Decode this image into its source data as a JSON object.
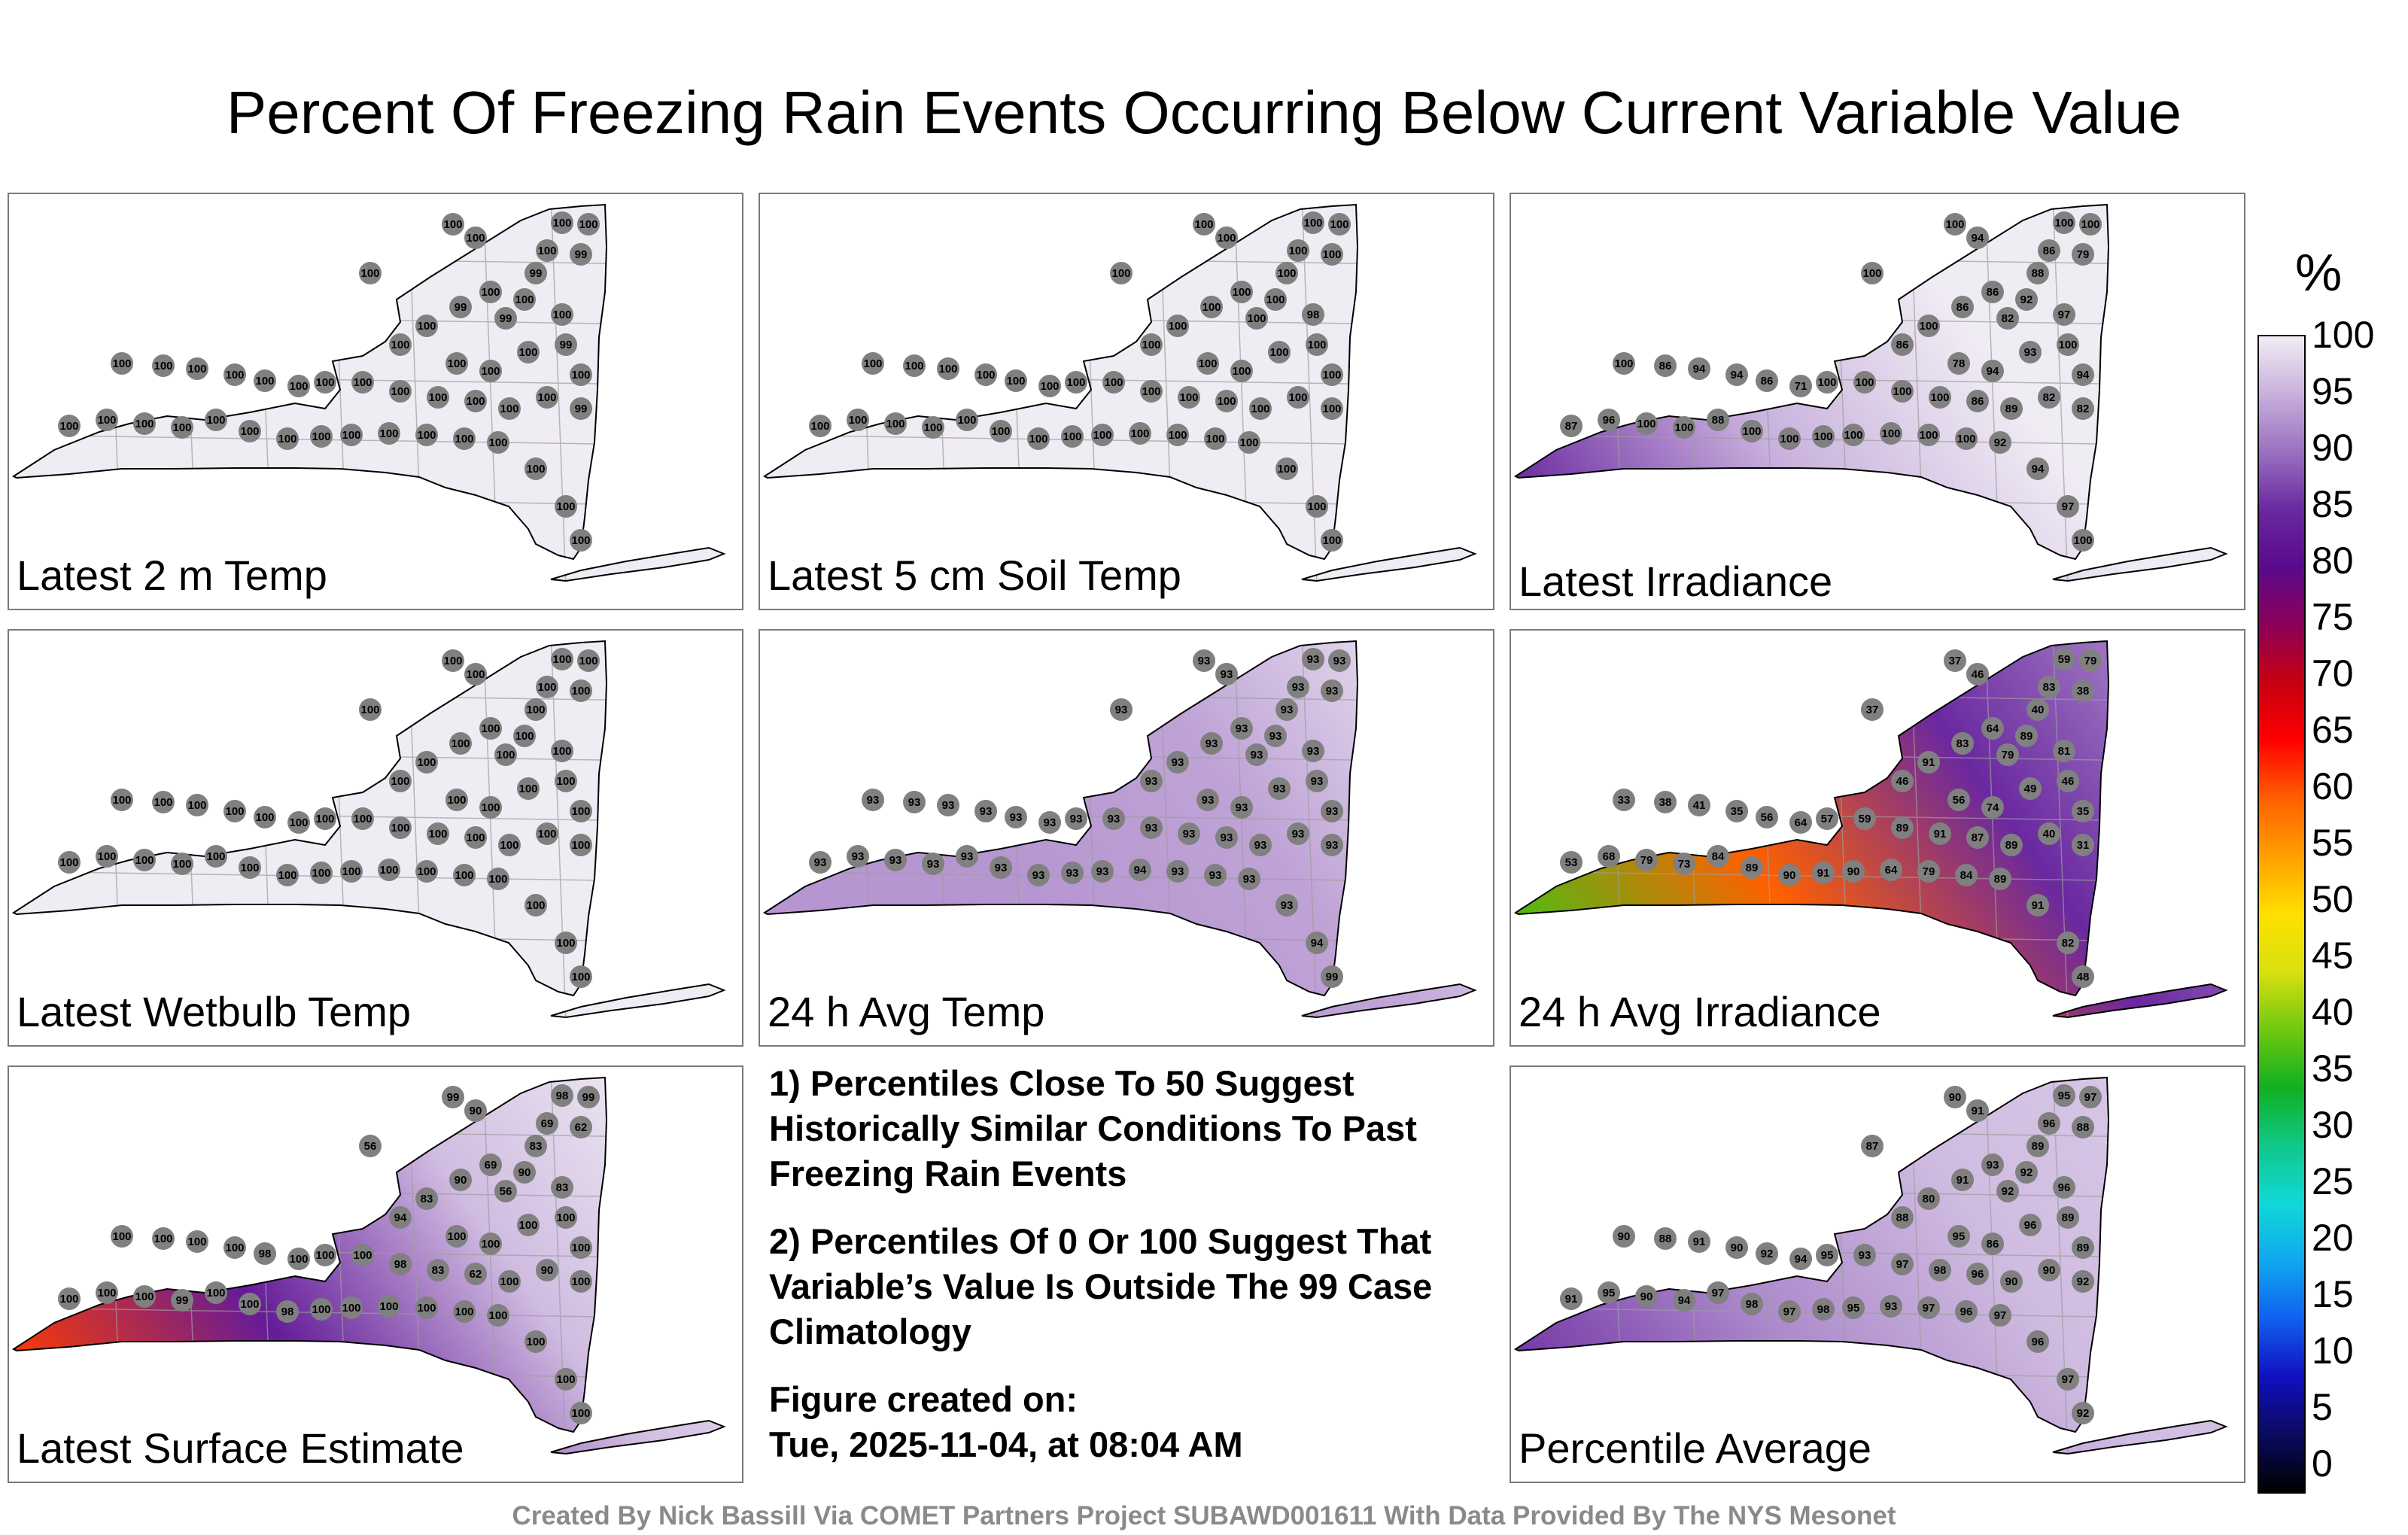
{
  "title": "Percent Of Freezing Rain Events Occurring Below Current Variable Value",
  "credit": "Created By Nick Bassill Via COMET Partners Project SUBAWD001611 With Data Provided By The NYS Mesonet",
  "notes": {
    "note1": "1) Percentiles Close To 50 Suggest Historically Similar Conditions To Past Freezing Rain Events",
    "note2": "2) Percentiles Of 0 Or 100 Suggest That Variable’s Value Is Outside The 99 Case Climatology",
    "created_label": "Figure created on:",
    "created_value": "Tue, 2025-11-04, at 08:04 AM"
  },
  "colorbar": {
    "unit": "%",
    "ticks": [
      "100",
      "95",
      "90",
      "85",
      "80",
      "75",
      "70",
      "65",
      "60",
      "55",
      "50",
      "45",
      "40",
      "35",
      "30",
      "25",
      "20",
      "15",
      "10",
      "5",
      "0"
    ],
    "stops": [
      "#000000",
      "#0a0a60",
      "#1010c0",
      "#1060f0",
      "#10a8f0",
      "#10d8d8",
      "#10c888",
      "#10b020",
      "#70c810",
      "#d8e010",
      "#ffe000",
      "#ffa000",
      "#ff6000",
      "#ff0000",
      "#c80010",
      "#8c0058",
      "#5a0a8c",
      "#6a28a0",
      "#9a70c0",
      "#c8b0dc",
      "#f0ecf4"
    ]
  },
  "colors": {
    "frame": "#7a7a7a",
    "station_dot": "#808080",
    "state_outline": "#000000",
    "county_lines": "#9c9c9c"
  },
  "chart_data": [
    {
      "type": "map",
      "title": "Latest 2 m Temp",
      "field_values": [
        100,
        100,
        100,
        100
      ],
      "station_values": [
        100,
        100,
        100,
        100,
        100,
        99,
        99,
        100,
        100,
        99,
        100,
        99,
        100,
        100,
        100,
        100,
        100,
        100,
        99,
        100,
        100,
        100,
        100,
        100,
        100,
        100,
        100,
        100,
        100,
        100,
        100,
        100,
        100,
        99,
        100,
        100,
        100,
        100,
        100,
        100,
        100,
        100,
        100,
        100,
        100,
        100,
        100,
        100,
        100,
        100
      ]
    },
    {
      "type": "map",
      "title": "Latest 5 cm Soil Temp",
      "field_values": [
        100,
        100,
        100,
        100
      ],
      "station_values": [
        100,
        100,
        100,
        100,
        100,
        100,
        100,
        100,
        100,
        100,
        98,
        100,
        100,
        100,
        100,
        100,
        100,
        100,
        100,
        100,
        100,
        100,
        100,
        100,
        100,
        100,
        100,
        100,
        100,
        100,
        100,
        100,
        100,
        100,
        100,
        100,
        100,
        100,
        100,
        100,
        100,
        100,
        100,
        100,
        100,
        100,
        100,
        100,
        100,
        100
      ]
    },
    {
      "type": "map",
      "title": "Latest Irradiance",
      "field_values": [
        85,
        95,
        100,
        100
      ],
      "station_values": [
        100,
        94,
        100,
        100,
        86,
        79,
        88,
        86,
        92,
        82,
        97,
        86,
        100,
        100,
        86,
        78,
        94,
        93,
        100,
        94,
        100,
        86,
        94,
        94,
        86,
        71,
        100,
        100,
        100,
        100,
        86,
        89,
        82,
        82,
        87,
        96,
        100,
        100,
        88,
        100,
        100,
        100,
        100,
        100,
        100,
        100,
        92,
        94,
        97,
        100
      ]
    },
    {
      "type": "map",
      "title": "Latest Wetbulb Temp",
      "field_values": [
        100,
        100,
        100,
        100
      ],
      "station_values": [
        100,
        100,
        100,
        100,
        100,
        100,
        100,
        100,
        100,
        100,
        100,
        100,
        100,
        100,
        100,
        100,
        100,
        100,
        100,
        100,
        100,
        100,
        100,
        100,
        100,
        100,
        100,
        100,
        100,
        100,
        100,
        100,
        100,
        100,
        100,
        100,
        100,
        100,
        100,
        100,
        100,
        100,
        100,
        100,
        100,
        100,
        100,
        100,
        100,
        100
      ]
    },
    {
      "type": "map",
      "title": "24 h Avg Temp",
      "field_values": [
        93,
        93,
        94,
        99
      ],
      "station_values": [
        93,
        93,
        93,
        93,
        93,
        93,
        93,
        93,
        93,
        93,
        93,
        93,
        93,
        93,
        93,
        93,
        93,
        93,
        93,
        93,
        93,
        93,
        93,
        93,
        93,
        93,
        93,
        93,
        93,
        93,
        93,
        93,
        93,
        93,
        93,
        93,
        93,
        93,
        93,
        93,
        93,
        93,
        93,
        94,
        93,
        93,
        93,
        93,
        94,
        99
      ]
    },
    {
      "type": "map",
      "title": "24 h Avg Irradiance",
      "field_values": [
        38,
        60,
        85,
        92
      ],
      "station_values": [
        37,
        46,
        59,
        79,
        83,
        38,
        40,
        64,
        89,
        79,
        81,
        83,
        91,
        37,
        46,
        56,
        74,
        49,
        46,
        35,
        33,
        38,
        41,
        35,
        56,
        64,
        57,
        59,
        89,
        91,
        87,
        89,
        40,
        31,
        53,
        68,
        79,
        73,
        84,
        89,
        90,
        91,
        90,
        64,
        79,
        84,
        89,
        91,
        82,
        48
      ]
    },
    {
      "type": "map",
      "title": "Latest Surface Estimate",
      "field_values": [
        62,
        83,
        96,
        100
      ],
      "station_values": [
        99,
        90,
        98,
        99,
        69,
        62,
        83,
        69,
        90,
        56,
        83,
        90,
        83,
        56,
        94,
        100,
        100,
        100,
        100,
        100,
        100,
        100,
        100,
        100,
        98,
        100,
        100,
        100,
        98,
        83,
        62,
        100,
        90,
        100,
        100,
        100,
        100,
        99,
        100,
        100,
        98,
        100,
        100,
        100,
        100,
        100,
        100,
        100,
        100,
        100
      ]
    },
    {
      "type": "map",
      "title": "Percentile Average",
      "field_values": [
        86,
        92,
        96,
        97
      ],
      "station_values": [
        90,
        91,
        95,
        97,
        96,
        88,
        89,
        93,
        92,
        92,
        96,
        91,
        80,
        87,
        88,
        95,
        86,
        96,
        89,
        89,
        90,
        88,
        91,
        90,
        92,
        94,
        95,
        93,
        97,
        98,
        96,
        90,
        90,
        92,
        91,
        95,
        90,
        94,
        97,
        98,
        97,
        98,
        95,
        93,
        97,
        96,
        97,
        96,
        97,
        92
      ]
    }
  ]
}
